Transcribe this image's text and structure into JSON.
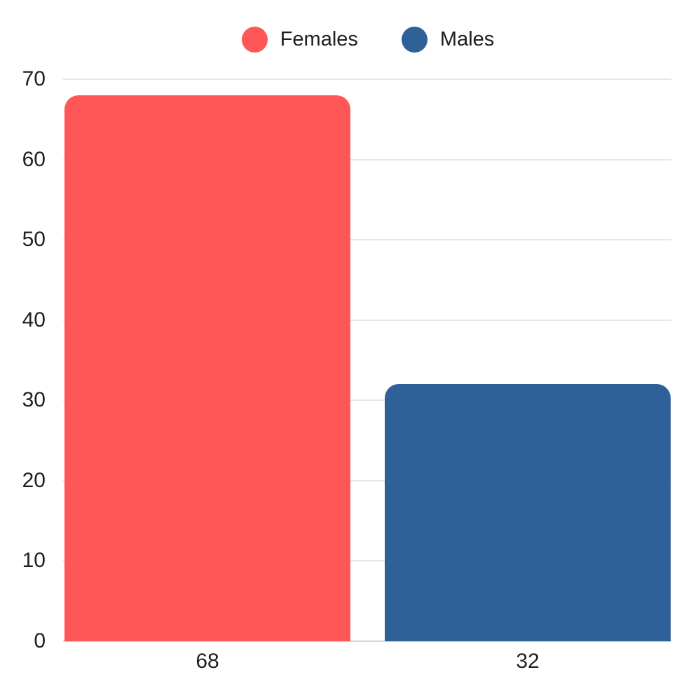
{
  "chart_data": {
    "type": "bar",
    "categories": [
      "Females",
      "Males"
    ],
    "values": [
      68,
      32
    ],
    "value_labels": [
      "68",
      "32"
    ],
    "series_colors": [
      "#FF5757",
      "#2F6199"
    ],
    "title": "",
    "xlabel": "",
    "ylabel": "",
    "ylim": [
      0,
      70
    ],
    "yticks": [
      "0",
      "10",
      "20",
      "30",
      "40",
      "50",
      "60",
      "70"
    ],
    "grid": true,
    "legend_position": "top"
  },
  "legend": {
    "items": [
      {
        "label": "Females",
        "color": "#FF5757"
      },
      {
        "label": "Males",
        "color": "#2F6199"
      }
    ]
  },
  "colors": {
    "background": "#FFFFFF",
    "gridline": "#E7E7EA",
    "baseline": "#D4D4DA",
    "text": "#1F1F1F"
  }
}
